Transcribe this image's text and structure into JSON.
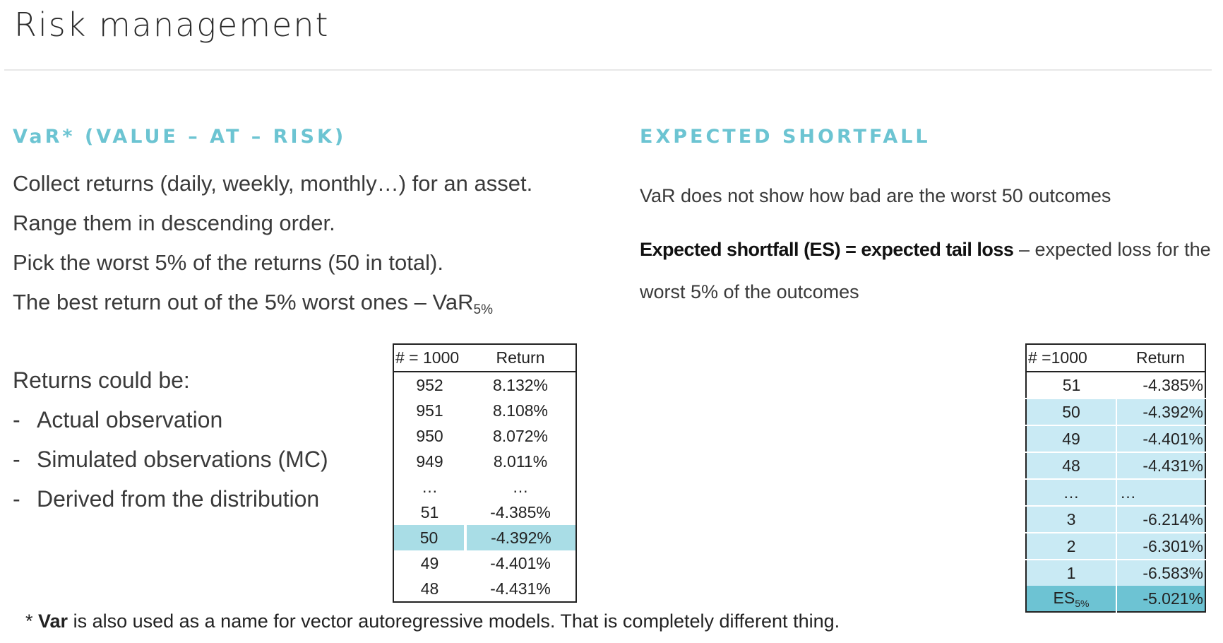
{
  "title": "Risk management",
  "left": {
    "heading": "VaR* (VALUE – AT – RISK)",
    "steps": [
      "Collect returns (daily, weekly, monthly…) for an asset.",
      "Range them in descending order.",
      "Pick the worst 5% of the returns (50 in total)."
    ],
    "step4_text": "The best return out of the 5% worst ones – VaR",
    "step4_sub": "5%",
    "returns_intro": "Returns could be:",
    "bullet_dash": "-",
    "bullets": [
      "Actual observation",
      "Simulated observations (MC)",
      "Derived from the distribution"
    ]
  },
  "right": {
    "heading": "EXPECTED SHORTFALL",
    "line1": "VaR does not show how bad are the worst 50 outcomes",
    "es_bold": "Expected shortfall (ES) = expected tail loss",
    "es_rest": " – expected loss for the",
    "es_line2": "worst 5% of the outcomes"
  },
  "var_table": {
    "headers": [
      "# = 1000",
      "Return"
    ],
    "rows": [
      [
        "952",
        "8.132%"
      ],
      [
        "951",
        "8.108%"
      ],
      [
        "950",
        "8.072%"
      ],
      [
        "949",
        "8.011%"
      ],
      [
        "…",
        "…"
      ],
      [
        "51",
        "-4.385%"
      ],
      [
        "50",
        "-4.392%"
      ],
      [
        "49",
        "-4.401%"
      ],
      [
        "48",
        "-4.431%"
      ]
    ],
    "highlight_row": 6,
    "highlight_color": "#a9dde6"
  },
  "es_table": {
    "headers": [
      "# =1000",
      "Return"
    ],
    "rows": [
      [
        "51",
        "-4.385%"
      ],
      [
        "50",
        "-4.392%"
      ],
      [
        "49",
        "-4.401%"
      ],
      [
        "48",
        "-4.431%"
      ],
      [
        "…",
        "…"
      ],
      [
        "3",
        "-6.214%"
      ],
      [
        "2",
        "-6.301%"
      ],
      [
        "1",
        "-6.583%"
      ]
    ],
    "es_label": "ES",
    "es_sub": "5%",
    "es_value": "-5.021%",
    "band_color": "#c9eaf4",
    "es_row_color": "#6dc3d3"
  },
  "footnote": {
    "star": "* ",
    "bold": "Var",
    "rest": " is also used as a name for vector autoregressive models. That is completely different thing."
  }
}
